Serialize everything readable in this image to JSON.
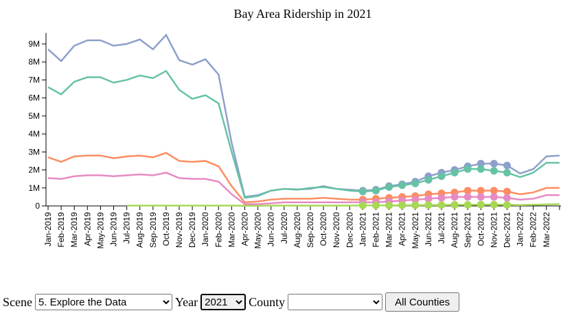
{
  "chart_data": {
    "type": "line",
    "title": "Bay Area Ridership in 2021",
    "categories": [
      "Jan-2019",
      "Feb-2019",
      "Mar-2019",
      "Apr-2019",
      "May-2019",
      "Jun-2019",
      "Jul-2019",
      "Aug-2019",
      "Sep-2019",
      "Oct-2019",
      "Nov-2019",
      "Dec-2019",
      "Jan-2020",
      "Feb-2020",
      "Mar-2020",
      "Apr-2020",
      "May-2020",
      "Jun-2020",
      "Jul-2020",
      "Aug-2020",
      "Sep-2020",
      "Oct-2020",
      "Nov-2020",
      "Dec-2020",
      "Jan-2021",
      "Feb-2021",
      "Mar-2021",
      "Apr-2021",
      "May-2021",
      "Jun-2021",
      "Jul-2021",
      "Aug-2021",
      "Sep-2021",
      "Oct-2021",
      "Nov-2021",
      "Dec-2021",
      "Jan-2022",
      "Feb-2022",
      "Mar-2022",
      null
    ],
    "series": [
      {
        "color": "#8da0cb",
        "values": [
          8700000,
          8050000,
          8900000,
          9200000,
          9200000,
          8900000,
          9000000,
          9250000,
          8700000,
          9500000,
          8100000,
          7850000,
          8150000,
          7300000,
          3500000,
          500000,
          600000,
          850000,
          950000,
          920000,
          950000,
          1100000,
          950000,
          900000,
          850000,
          900000,
          1100000,
          1200000,
          1350000,
          1650000,
          1850000,
          2000000,
          2200000,
          2350000,
          2350000,
          2250000,
          1800000,
          2050000,
          2750000,
          2800000
        ]
      },
      {
        "color": "#66c2a5",
        "values": [
          6600000,
          6200000,
          6900000,
          7150000,
          7150000,
          6850000,
          7000000,
          7250000,
          7100000,
          7500000,
          6450000,
          5950000,
          6150000,
          5700000,
          3000000,
          450000,
          550000,
          850000,
          950000,
          900000,
          1000000,
          1050000,
          950000,
          850000,
          800000,
          850000,
          1050000,
          1150000,
          1250000,
          1450000,
          1650000,
          1850000,
          2050000,
          2050000,
          1950000,
          1850000,
          1600000,
          1850000,
          2400000,
          2400000
        ]
      },
      {
        "color": "#fc8d62",
        "values": [
          2700000,
          2450000,
          2750000,
          2800000,
          2800000,
          2650000,
          2750000,
          2800000,
          2700000,
          2950000,
          2500000,
          2450000,
          2500000,
          2200000,
          1100000,
          200000,
          250000,
          350000,
          400000,
          400000,
          400000,
          450000,
          400000,
          350000,
          350000,
          400000,
          450000,
          500000,
          550000,
          650000,
          700000,
          750000,
          850000,
          850000,
          850000,
          800000,
          650000,
          750000,
          1000000,
          1000000
        ]
      },
      {
        "color": "#e78ac3",
        "values": [
          1550000,
          1500000,
          1650000,
          1700000,
          1700000,
          1650000,
          1700000,
          1750000,
          1700000,
          1850000,
          1550000,
          1500000,
          1500000,
          1350000,
          650000,
          100000,
          100000,
          150000,
          200000,
          200000,
          200000,
          200000,
          200000,
          200000,
          200000,
          200000,
          250000,
          300000,
          350000,
          400000,
          450000,
          500000,
          500000,
          500000,
          500000,
          450000,
          350000,
          400000,
          600000,
          600000
        ]
      },
      {
        "color": "#a6d854",
        "values": [
          null,
          null,
          null,
          null,
          null,
          null,
          20000,
          20000,
          20000,
          20000,
          20000,
          20000,
          20000,
          20000,
          20000,
          10000,
          10000,
          20000,
          20000,
          20000,
          20000,
          20000,
          20000,
          20000,
          30000,
          30000,
          30000,
          40000,
          40000,
          50000,
          50000,
          60000,
          60000,
          70000,
          70000,
          60000,
          50000,
          60000,
          80000,
          100000
        ]
      }
    ],
    "ylim": [
      0,
      9000000
    ],
    "yticks": [
      0,
      {
        "value": 1000000,
        "label": "1M"
      },
      {
        "value": 2000000,
        "label": "2M"
      },
      {
        "value": 3000000,
        "label": "3M"
      },
      {
        "value": 4000000,
        "label": "4M"
      },
      {
        "value": 5000000,
        "label": "5M"
      },
      {
        "value": 6000000,
        "label": "6M"
      },
      {
        "value": 7000000,
        "label": "7M"
      },
      {
        "value": 8000000,
        "label": "8M"
      },
      {
        "value": 9000000,
        "label": "9M"
      }
    ],
    "grid": false
  },
  "controls": {
    "scene_label": "Scene",
    "scene_value": "5. Explore the Data",
    "year_label": "Year",
    "year_value": "2021",
    "county_label": "County",
    "button": "All Counties"
  }
}
